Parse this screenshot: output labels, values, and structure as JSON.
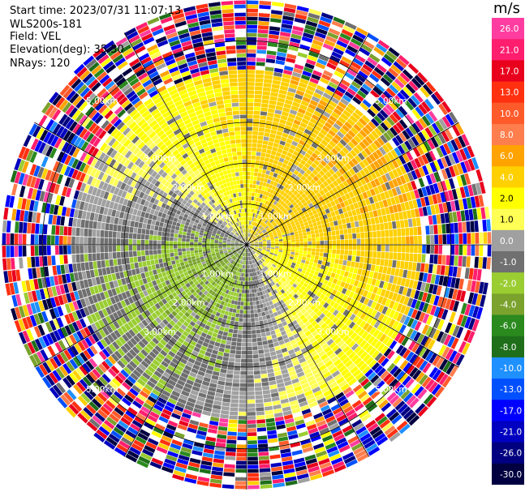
{
  "info": {
    "start_time": "Start time: 2023/07/31 11:07:13",
    "instrument": "WLS200s-181",
    "field": "Field: VEL",
    "elevation": "Elevation(deg): 35.30",
    "nrays": "NRays: 120"
  },
  "colorbar": {
    "unit": "m/s",
    "ticks": [
      "26.0",
      "21.0",
      "17.0",
      "13.0",
      "10.0",
      "8.0",
      "6.0",
      "4.0",
      "2.0",
      "1.0",
      "0.0",
      "-1.0",
      "-2.0",
      "-4.0",
      "-6.0",
      "-8.0",
      "-10.0",
      "-13.0",
      "-17.0",
      "-21.0",
      "-26.0",
      "-30.0"
    ],
    "colors": [
      "#ff3da0",
      "#ff1e6e",
      "#e8001c",
      "#ff3010",
      "#ff5a2a",
      "#ff7e4e",
      "#ffa300",
      "#ffd000",
      "#ffff00",
      "#ffff55",
      "#a0a0a0",
      "#707070",
      "#9acd32",
      "#7aa22c",
      "#2a8a1e",
      "#1e6e1a",
      "#1e90ff",
      "#0050ff",
      "#0000ff",
      "#0000c0",
      "#000080",
      "#000040"
    ]
  },
  "chart_data": {
    "type": "ppi",
    "field": "VEL",
    "nrays": 120,
    "max_range_km": 6.0,
    "range_rings_km": [
      1.0,
      2.0,
      3.0,
      5.0
    ],
    "range_labels": [
      "1.00km",
      "2.00km",
      "3.00km",
      "5.00km"
    ],
    "levels": [
      -30.0,
      -26.0,
      -21.0,
      -17.0,
      -13.0,
      -10.0,
      -8.0,
      -6.0,
      -4.0,
      -2.0,
      -1.0,
      0.0,
      1.0,
      2.0,
      4.0,
      6.0,
      8.0,
      10.0,
      13.0,
      17.0,
      21.0,
      26.0
    ],
    "pattern": "inner ~4.5 km: approaching/receding velocity dipole (positive, yellow-orange to the north and east, negative, green to the south and west); outer ring: noisy random values"
  }
}
